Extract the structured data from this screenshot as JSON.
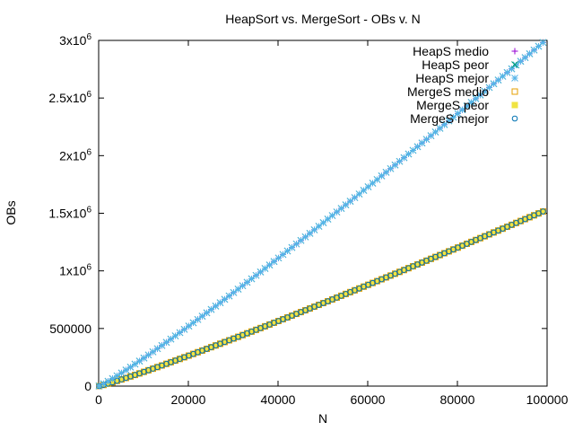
{
  "chart_data": {
    "type": "scatter",
    "title": "HeapSort vs. MergeSort - OBs v. N",
    "xlabel": "N",
    "ylabel": "OBs",
    "xlim": [
      0,
      100000
    ],
    "ylim": [
      0,
      3000000
    ],
    "x_ticks": [
      {
        "value": 0,
        "label": "0"
      },
      {
        "value": 20000,
        "label": "20000"
      },
      {
        "value": 40000,
        "label": "40000"
      },
      {
        "value": 60000,
        "label": "60000"
      },
      {
        "value": 80000,
        "label": "80000"
      },
      {
        "value": 100000,
        "label": "100000"
      }
    ],
    "y_ticks": [
      {
        "value": 0,
        "label": "0",
        "sup": ""
      },
      {
        "value": 500000,
        "label": "500000",
        "sup": ""
      },
      {
        "value": 1000000,
        "label": "1x10",
        "sup": "6"
      },
      {
        "value": 1500000,
        "label": "1.5x10",
        "sup": "6"
      },
      {
        "value": 2000000,
        "label": "2x10",
        "sup": "6"
      },
      {
        "value": 2500000,
        "label": "2.5x10",
        "sup": "6"
      },
      {
        "value": 3000000,
        "label": "3x10",
        "sup": "6"
      }
    ],
    "grid": false,
    "legend_position": "top-right",
    "x_sampling": {
      "start": 100,
      "step": 1000,
      "end": 99100
    },
    "series": [
      {
        "name": "HeapS medio",
        "marker": "plus",
        "color": "#9400d3",
        "model": "heap",
        "factor": 1.0
      },
      {
        "name": "HeapS peor",
        "marker": "cross",
        "color": "#009e73",
        "model": "heap",
        "factor": 1.0
      },
      {
        "name": "HeapS mejor",
        "marker": "star",
        "color": "#56b4e9",
        "model": "heap",
        "factor": 1.0
      },
      {
        "name": "MergeS medio",
        "marker": "open-square",
        "color": "#e69f00",
        "model": "merge",
        "factor": 1.0
      },
      {
        "name": "MergeS peor",
        "marker": "filled-square",
        "color": "#f0e442",
        "model": "merge",
        "factor": 1.0
      },
      {
        "name": "MergeS mejor",
        "marker": "open-circle",
        "color": "#0072b2",
        "model": "merge",
        "factor": 1.0
      }
    ],
    "models": {
      "heap": {
        "formula": "2 * N * log2(N) * 0.9065"
      },
      "merge": {
        "formula": "N * log2(N) * 0.9214"
      }
    }
  }
}
